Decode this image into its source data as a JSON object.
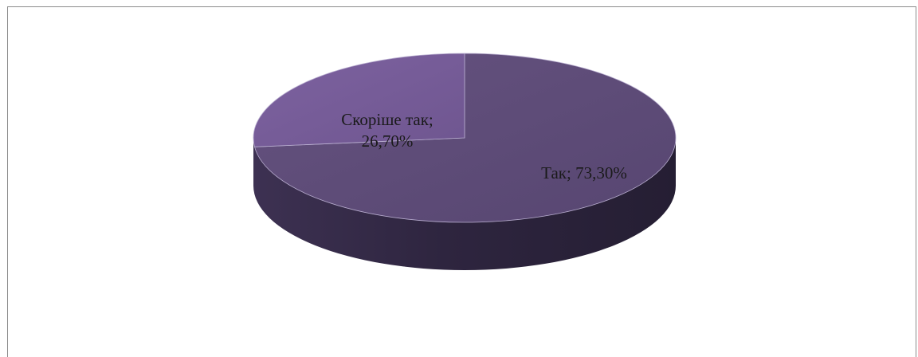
{
  "chart_data": {
    "type": "pie",
    "title": "",
    "style": "3d",
    "legend": "none",
    "slices": [
      {
        "label": "Так",
        "value": 73.3,
        "data_label": "Так; 73,30%",
        "color": "#5d4a78"
      },
      {
        "label": "Скоріше так",
        "value": 26.7,
        "data_label_line1": "Скоріше так;",
        "data_label_line2": "26,70%",
        "color": "#765a96"
      }
    ]
  }
}
